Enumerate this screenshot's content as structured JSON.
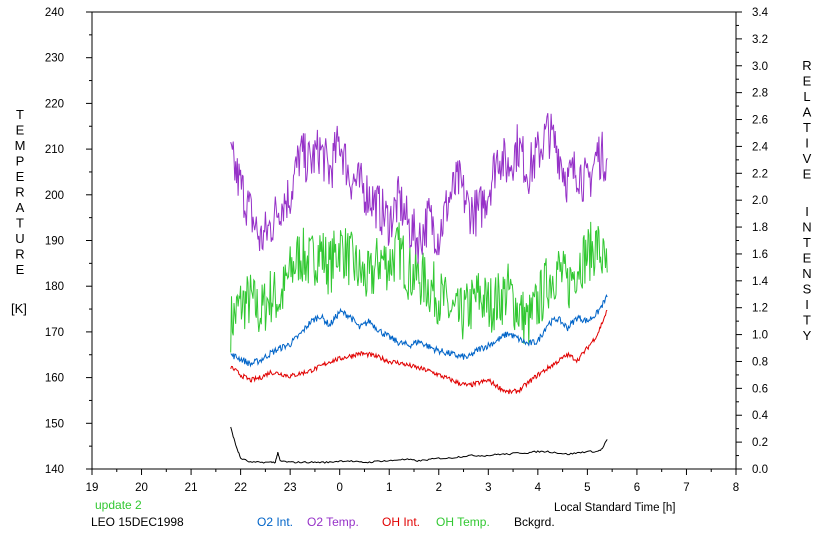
{
  "chart_data": {
    "type": "line",
    "title": "",
    "xlabel": "Local Standard Time [h]",
    "ylabel_left_letters": [
      "T",
      "E",
      "M",
      "P",
      "E",
      "R",
      "A",
      "T",
      "U",
      "R",
      "E"
    ],
    "ylabel_left_unit": "[K]",
    "ylabel_right_letters": [
      "R",
      "E",
      "L",
      "A",
      "T",
      "I",
      "V",
      "E",
      "I",
      "N",
      "T",
      "E",
      "N",
      "S",
      "I",
      "T",
      "Y"
    ],
    "x_ticks": [
      "19",
      "20",
      "21",
      "22",
      "23",
      "0",
      "1",
      "2",
      "3",
      "4",
      "5",
      "6",
      "7",
      "8"
    ],
    "xlim": [
      19,
      32
    ],
    "y_left_ticks": [
      "140",
      "150",
      "160",
      "170",
      "180",
      "190",
      "200",
      "210",
      "220",
      "230",
      "240"
    ],
    "ylim_left": [
      140,
      240
    ],
    "y_right_ticks": [
      "0.0",
      "0.2",
      "0.4",
      "0.6",
      "0.8",
      "1.0",
      "1.2",
      "1.4",
      "1.6",
      "1.8",
      "2.0",
      "2.2",
      "2.4",
      "2.6",
      "2.8",
      "3.0",
      "3.2",
      "3.4"
    ],
    "ylim_right": [
      0,
      3.4
    ],
    "grid": false,
    "legend_placement": "bottom",
    "update_label": "update 2",
    "station_label": "LEO 15DEC1998",
    "colors": {
      "o2_int": "#0064c8",
      "o2_temp": "#9632c8",
      "oh_int": "#e10000",
      "oh_temp": "#32c832",
      "bckgrd": "#000000",
      "update": "#32c832"
    },
    "series": [
      {
        "name": "O2 Int.",
        "axis": "right",
        "color": "#0064c8",
        "x": [
          21.8,
          22.0,
          22.2,
          22.4,
          22.6,
          22.8,
          23.0,
          23.2,
          23.4,
          23.6,
          23.8,
          24.0,
          24.2,
          24.4,
          24.6,
          24.8,
          25.0,
          25.2,
          25.4,
          25.6,
          25.8,
          26.0,
          26.2,
          26.4,
          26.6,
          26.8,
          27.0,
          27.2,
          27.4,
          27.6,
          27.8,
          28.0,
          28.2,
          28.4,
          28.6,
          28.8,
          29.0,
          29.2,
          29.4
        ],
        "y": [
          0.85,
          0.82,
          0.78,
          0.81,
          0.86,
          0.9,
          0.93,
          1.0,
          1.09,
          1.14,
          1.07,
          1.17,
          1.14,
          1.05,
          1.1,
          1.03,
          0.98,
          0.94,
          0.92,
          0.95,
          0.91,
          0.88,
          0.86,
          0.84,
          0.83,
          0.89,
          0.92,
          0.96,
          1.01,
          0.97,
          0.93,
          0.95,
          1.08,
          1.12,
          1.05,
          1.13,
          1.1,
          1.16,
          1.28
        ]
      },
      {
        "name": "O2 Temp.",
        "axis": "left",
        "color": "#9632c8",
        "x": [
          21.8,
          22.0,
          22.2,
          22.4,
          22.6,
          22.8,
          23.0,
          23.2,
          23.4,
          23.6,
          23.8,
          24.0,
          24.2,
          24.4,
          24.6,
          24.8,
          25.0,
          25.2,
          25.4,
          25.6,
          25.8,
          26.0,
          26.2,
          26.4,
          26.6,
          26.8,
          27.0,
          27.2,
          27.4,
          27.6,
          27.8,
          28.0,
          28.2,
          28.4,
          28.6,
          28.8,
          29.0,
          29.2,
          29.4
        ],
        "y": [
          208,
          202,
          196,
          190,
          193,
          198,
          200,
          209,
          207,
          210,
          205,
          212,
          204,
          202,
          200,
          197,
          194,
          199,
          193,
          190,
          195,
          191,
          199,
          203,
          197,
          196,
          201,
          209,
          206,
          211,
          205,
          209,
          214,
          210,
          203,
          206,
          202,
          209,
          208
        ]
      },
      {
        "name": "OH Int.",
        "axis": "right",
        "color": "#e10000",
        "x": [
          21.8,
          22.0,
          22.2,
          22.4,
          22.6,
          22.8,
          23.0,
          23.2,
          23.4,
          23.6,
          23.8,
          24.0,
          24.2,
          24.4,
          24.6,
          24.8,
          25.0,
          25.2,
          25.4,
          25.6,
          25.8,
          26.0,
          26.2,
          26.4,
          26.6,
          26.8,
          27.0,
          27.2,
          27.4,
          27.6,
          27.8,
          28.0,
          28.2,
          28.4,
          28.6,
          28.8,
          29.0,
          29.2,
          29.4
        ],
        "y": [
          0.76,
          0.7,
          0.66,
          0.68,
          0.72,
          0.71,
          0.69,
          0.71,
          0.73,
          0.76,
          0.8,
          0.82,
          0.84,
          0.86,
          0.85,
          0.83,
          0.8,
          0.79,
          0.77,
          0.75,
          0.73,
          0.7,
          0.67,
          0.64,
          0.62,
          0.64,
          0.66,
          0.61,
          0.57,
          0.58,
          0.64,
          0.7,
          0.75,
          0.8,
          0.85,
          0.81,
          0.9,
          1.0,
          1.18
        ]
      },
      {
        "name": "OH Temp.",
        "axis": "left",
        "color": "#32c832",
        "x": [
          21.8,
          22.0,
          22.2,
          22.4,
          22.6,
          22.8,
          23.0,
          23.2,
          23.4,
          23.6,
          23.8,
          24.0,
          24.2,
          24.4,
          24.6,
          24.8,
          25.0,
          25.2,
          25.4,
          25.6,
          25.8,
          26.0,
          26.2,
          26.4,
          26.6,
          26.8,
          27.0,
          27.2,
          27.4,
          27.6,
          27.8,
          28.0,
          28.2,
          28.4,
          28.6,
          28.8,
          29.0,
          29.2,
          29.4
        ],
        "y": [
          172,
          176,
          177,
          174,
          178,
          177,
          183,
          187,
          185,
          188,
          184,
          189,
          186,
          183,
          181,
          186,
          185,
          188,
          183,
          182,
          180,
          178,
          175,
          173,
          175,
          178,
          176,
          177,
          179,
          175,
          172,
          176,
          181,
          184,
          180,
          185,
          187,
          189,
          183
        ]
      },
      {
        "name": "Bckgrd.",
        "axis": "right",
        "color": "#000000",
        "x": [
          21.8,
          21.9,
          22.0,
          22.2,
          22.4,
          22.6,
          22.7,
          22.75,
          22.8,
          23.0,
          23.2,
          23.4,
          23.6,
          23.8,
          24.0,
          24.2,
          24.4,
          24.6,
          24.8,
          25.0,
          25.2,
          25.4,
          25.6,
          25.8,
          26.0,
          26.2,
          26.4,
          26.6,
          26.8,
          27.0,
          27.2,
          27.4,
          27.6,
          27.8,
          28.0,
          28.2,
          28.4,
          28.6,
          28.8,
          29.0,
          29.2,
          29.3,
          29.4
        ],
        "y": [
          0.31,
          0.18,
          0.08,
          0.05,
          0.05,
          0.05,
          0.05,
          0.12,
          0.06,
          0.05,
          0.05,
          0.05,
          0.05,
          0.05,
          0.06,
          0.06,
          0.05,
          0.05,
          0.06,
          0.06,
          0.07,
          0.07,
          0.06,
          0.07,
          0.08,
          0.08,
          0.09,
          0.1,
          0.1,
          0.1,
          0.11,
          0.11,
          0.12,
          0.12,
          0.13,
          0.13,
          0.12,
          0.11,
          0.12,
          0.13,
          0.13,
          0.15,
          0.22
        ]
      }
    ]
  }
}
